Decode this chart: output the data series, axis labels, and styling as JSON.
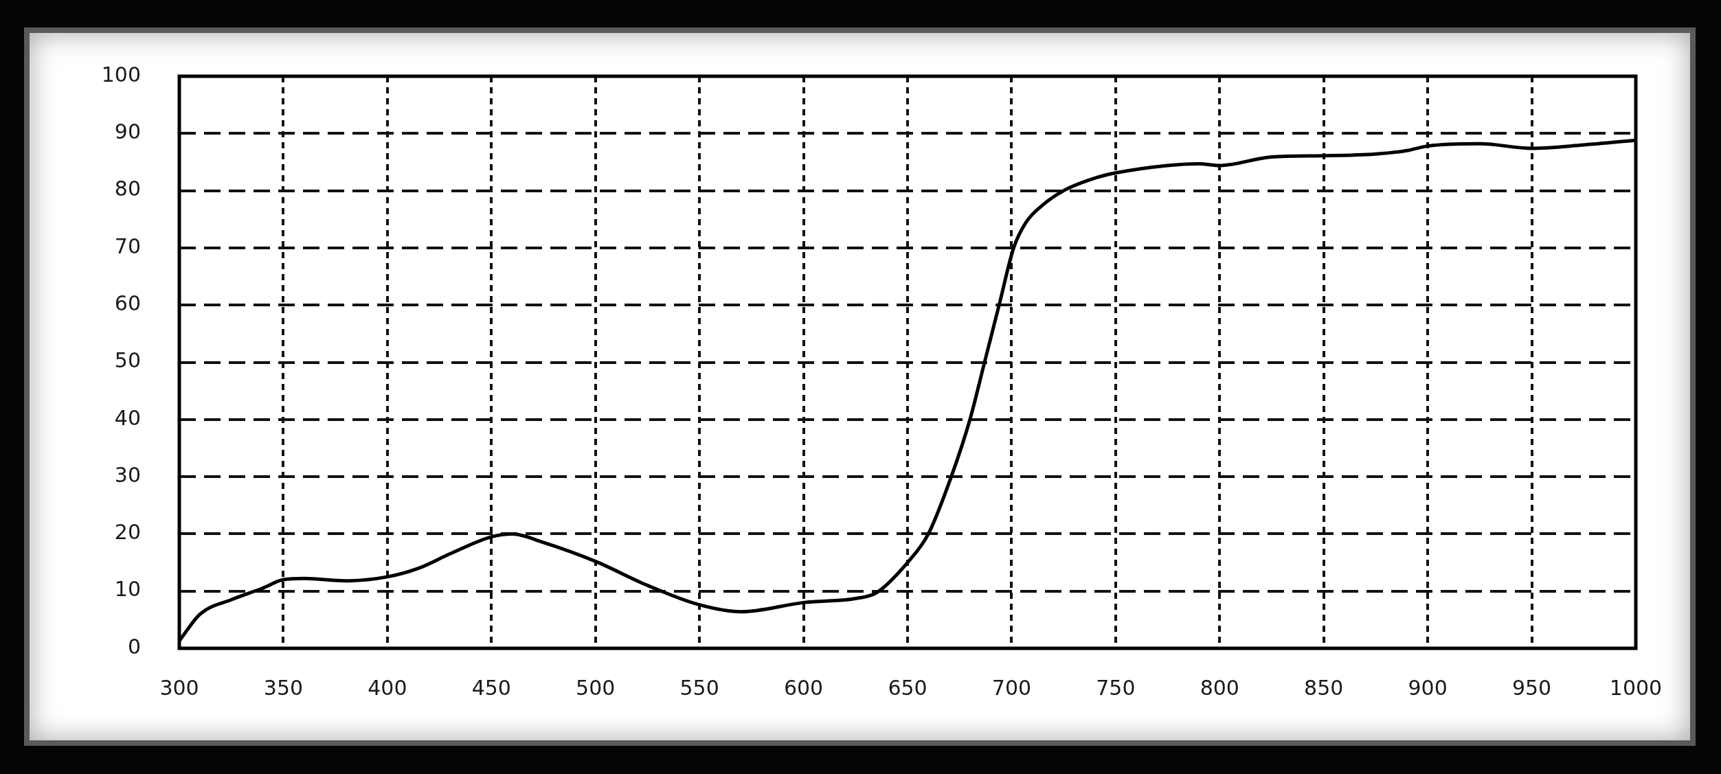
{
  "chart_data": {
    "type": "line",
    "x": [
      300,
      310,
      325,
      340,
      350,
      360,
      380,
      400,
      415,
      430,
      450,
      460,
      475,
      500,
      525,
      550,
      570,
      600,
      625,
      635,
      650,
      660,
      671,
      680,
      687,
      694,
      701,
      707,
      715,
      725,
      741,
      750,
      775,
      790,
      800,
      825,
      850,
      875,
      890,
      900,
      925,
      950,
      975,
      1000
    ],
    "series": [
      {
        "color": "#000000",
        "values": [
          1.3,
          6,
          8.5,
          10.5,
          12,
          12.2,
          11.8,
          12.5,
          14,
          16.5,
          19.5,
          20,
          18.5,
          15.2,
          11,
          7.6,
          6.4,
          8,
          8.7,
          9.7,
          15,
          20,
          30,
          40,
          50,
          60,
          70,
          74.5,
          77.5,
          80,
          82.3,
          83.1,
          84.4,
          84.7,
          84.4,
          85.9,
          86.1,
          86.4,
          87,
          87.8,
          88.2,
          87.4,
          88,
          88.8
        ]
      }
    ],
    "xlim": [
      300,
      1000
    ],
    "xticks": [
      300,
      350,
      400,
      450,
      500,
      550,
      600,
      650,
      700,
      750,
      800,
      850,
      900,
      950,
      1000
    ],
    "ylim": [
      0,
      100
    ],
    "yticks": [
      0,
      10,
      20,
      30,
      40,
      50,
      60,
      70,
      80,
      90,
      100
    ],
    "grid": true
  }
}
